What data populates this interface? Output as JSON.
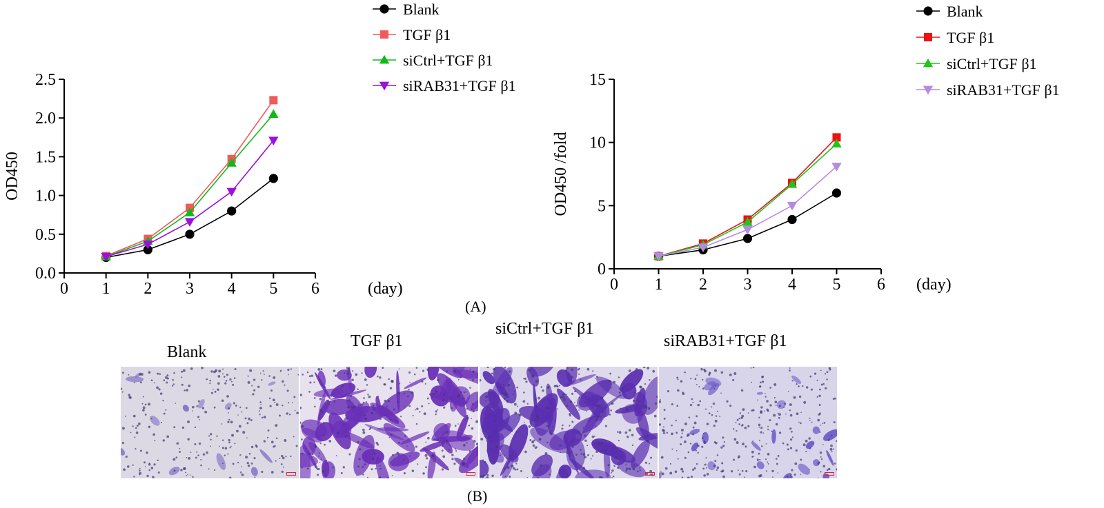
{
  "figure": {
    "panel_a_label": "(A)",
    "panel_b_label": "(B)"
  },
  "chart_data": [
    {
      "type": "line",
      "title": "",
      "xlabel": "(day)",
      "ylabel": "OD450",
      "xlim": [
        0,
        6
      ],
      "ylim": [
        0,
        2.5
      ],
      "xticks": [
        "0",
        "1",
        "2",
        "3",
        "4",
        "5",
        "6"
      ],
      "yticks": [
        "0.0",
        "0.5",
        "1.0",
        "1.5",
        "2.0",
        "2.5"
      ],
      "ytick_values": [
        0,
        0.5,
        1.0,
        1.5,
        2.0,
        2.5
      ],
      "x": [
        1,
        2,
        3,
        4,
        5
      ],
      "legend_position": "top-right",
      "series": [
        {
          "name": "Blank",
          "values": [
            0.2,
            0.3,
            0.5,
            0.8,
            1.22
          ],
          "color": "#000000",
          "marker": "circle"
        },
        {
          "name": "TGF β1",
          "values": [
            0.22,
            0.44,
            0.84,
            1.47,
            2.23
          ],
          "color": "#f25a5a",
          "marker": "square"
        },
        {
          "name": "siCtrl+TGF β1",
          "values": [
            0.21,
            0.41,
            0.78,
            1.42,
            2.05
          ],
          "color": "#11b81b",
          "marker": "triangle-up"
        },
        {
          "name": " siRAB31+TGF β1",
          "values": [
            0.21,
            0.37,
            0.66,
            1.05,
            1.71
          ],
          "color": "#9a10dc",
          "marker": "triangle-down"
        }
      ]
    },
    {
      "type": "line",
      "title": "",
      "xlabel": "(day)",
      "ylabel": "OD450 /fold",
      "xlim": [
        0,
        6
      ],
      "ylim": [
        0,
        15
      ],
      "xticks": [
        "0",
        "1",
        "2",
        "3",
        "4",
        "5",
        "6"
      ],
      "yticks": [
        "0",
        "5",
        "10",
        "15"
      ],
      "ytick_values": [
        0,
        5,
        10,
        15
      ],
      "x": [
        1,
        2,
        3,
        4,
        5
      ],
      "legend_position": "top-right",
      "series": [
        {
          "name": "Blank",
          "values": [
            1.0,
            1.5,
            2.4,
            3.9,
            6.0
          ],
          "color": "#000000",
          "marker": "circle"
        },
        {
          "name": "TGF β1",
          "values": [
            1.0,
            2.0,
            3.9,
            6.8,
            10.4
          ],
          "color": "#ee1111",
          "marker": "square"
        },
        {
          "name": "siCtrl+TGF β1",
          "values": [
            1.0,
            1.9,
            3.7,
            6.7,
            9.9
          ],
          "color": "#22c41c",
          "marker": "triangle-up"
        },
        {
          "name": " siRAB31+TGF β1",
          "values": [
            1.0,
            1.7,
            3.1,
            5.0,
            8.1
          ],
          "color": "#b58be0",
          "marker": "triangle-down"
        }
      ]
    }
  ],
  "micrographs": [
    {
      "title": "Blank",
      "density": "low",
      "tint": "#7f72c4",
      "background": "#dcd9e4"
    },
    {
      "title": "TGF β1",
      "density": "high",
      "tint": "#6a2fb8",
      "background": "#e8e2ee"
    },
    {
      "title": "siCtrl+TGF β1",
      "density": "high",
      "tint": "#5a2eb0",
      "background": "#dfd9ec"
    },
    {
      "title": "siRAB31+TGF β1",
      "density": "medium",
      "tint": "#6b58c8",
      "background": "#d8d4ea"
    }
  ]
}
